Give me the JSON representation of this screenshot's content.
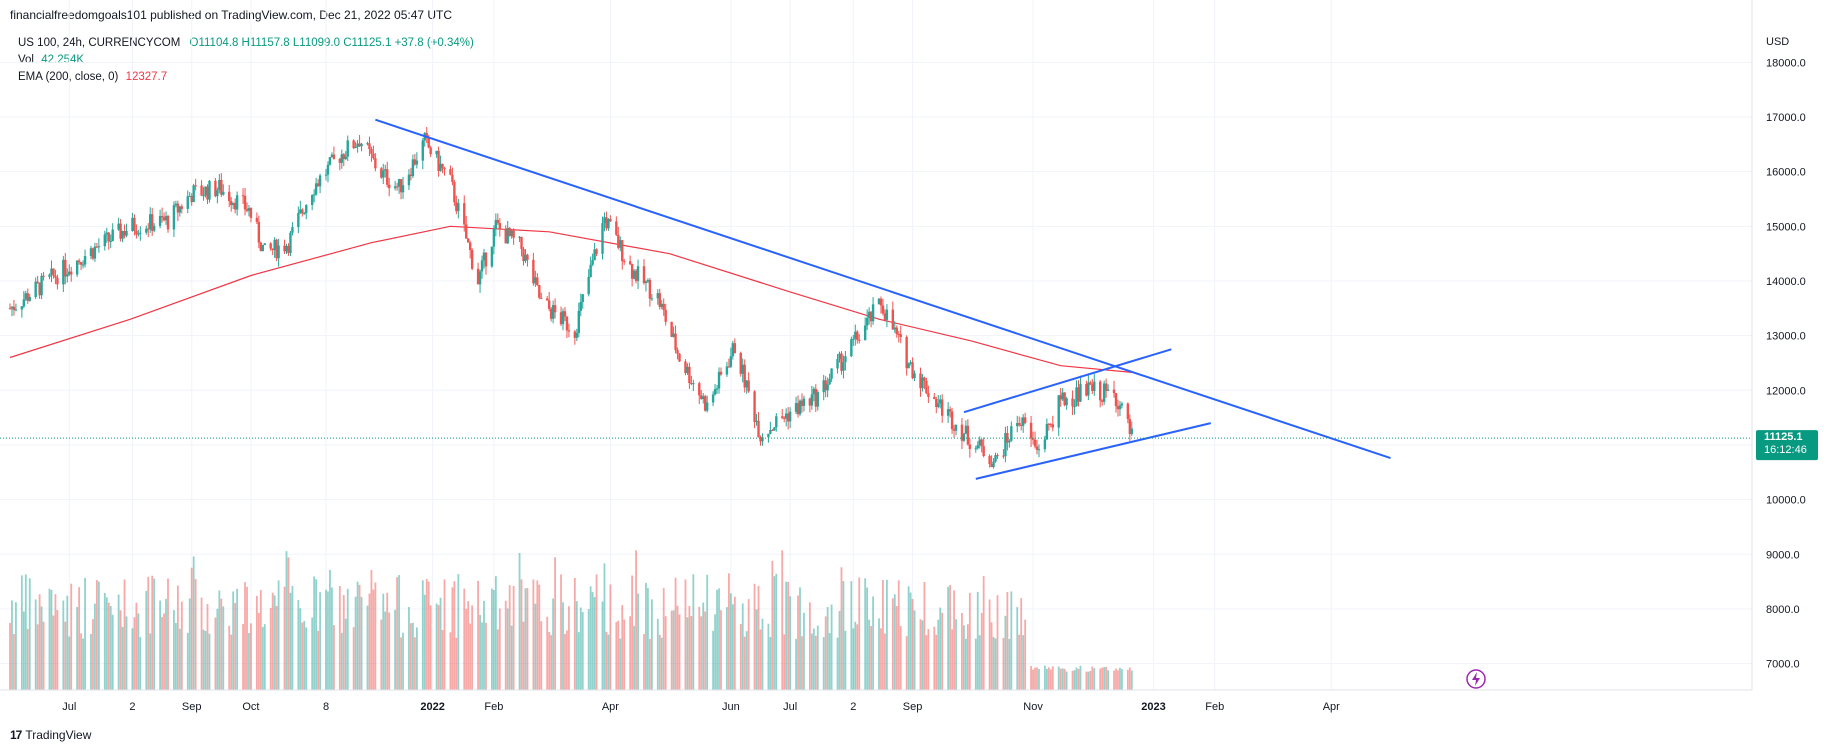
{
  "header": {
    "published_line": "financialfreedomgoals101 published on TradingView.com, Dec 21, 2022 05:47 UTC"
  },
  "legend": {
    "symbol": "US 100, 24h, CURRENCYCOM",
    "ohlc": "O11104.8  H11157.8  L11099.0  C11125.1  +37.8 (+0.34%)",
    "vol_label": "Vol",
    "vol_value": "42.254K",
    "ema_label": "EMA (200, close, 0)",
    "ema_value": "12327.7"
  },
  "footer": {
    "brand": "TradingView",
    "logo": "17"
  },
  "colors": {
    "up": "#26a69a",
    "down": "#ef5350",
    "trend": "#2962ff",
    "ema": "#f23645",
    "price_tag": "#089981"
  },
  "chart_data": {
    "type": "candlestick",
    "currency": "USD",
    "yticks": [
      "18000.0",
      "17000.0",
      "16000.0",
      "15000.0",
      "14000.0",
      "13000.0",
      "12000.0",
      "11000.0",
      "10000.0",
      "9000.0",
      "8000.0",
      "7000.0"
    ],
    "xticks": [
      "Jul",
      "2",
      "Sep",
      "Oct",
      "8",
      "2022",
      "Feb",
      "Apr",
      "Jun",
      "Jul",
      "2",
      "Sep",
      "Nov",
      "2023",
      "Feb",
      "Apr"
    ],
    "last_price": "11125.1",
    "countdown": "16:12:46",
    "price_path": [
      [
        "2021-06-01",
        13500
      ],
      [
        "2021-06-20",
        14000
      ],
      [
        "2021-07-10",
        14500
      ],
      [
        "2021-08-01",
        15000
      ],
      [
        "2021-08-20",
        15100
      ],
      [
        "2021-09-01",
        15600
      ],
      [
        "2021-09-15",
        15700
      ],
      [
        "2021-09-30",
        15300
      ],
      [
        "2021-10-08",
        14500
      ],
      [
        "2021-10-20",
        14700
      ],
      [
        "2021-11-01",
        15700
      ],
      [
        "2021-11-15",
        16300
      ],
      [
        "2021-11-25",
        16600
      ],
      [
        "2021-12-05",
        16000
      ],
      [
        "2021-12-15",
        15700
      ],
      [
        "2021-12-28",
        16550
      ],
      [
        "2022-01-10",
        15800
      ],
      [
        "2022-01-24",
        14000
      ],
      [
        "2022-02-02",
        15000
      ],
      [
        "2022-02-15",
        14600
      ],
      [
        "2022-02-25",
        13600
      ],
      [
        "2022-03-14",
        13100
      ],
      [
        "2022-03-29",
        15150
      ],
      [
        "2022-04-12",
        14200
      ],
      [
        "2022-04-25",
        13700
      ],
      [
        "2022-05-06",
        12600
      ],
      [
        "2022-05-20",
        11700
      ],
      [
        "2022-06-03",
        12800
      ],
      [
        "2022-06-16",
        11200
      ],
      [
        "2022-07-01",
        11600
      ],
      [
        "2022-07-15",
        11900
      ],
      [
        "2022-08-01",
        12800
      ],
      [
        "2022-08-16",
        13600
      ],
      [
        "2022-08-30",
        12500
      ],
      [
        "2022-09-13",
        11800
      ],
      [
        "2022-09-30",
        11100
      ],
      [
        "2022-10-13",
        10700
      ],
      [
        "2022-10-25",
        11500
      ],
      [
        "2022-11-03",
        10900
      ],
      [
        "2022-11-15",
        11800
      ],
      [
        "2022-11-30",
        12000
      ],
      [
        "2022-12-13",
        11900
      ],
      [
        "2022-12-21",
        11125
      ]
    ],
    "ema200_path": [
      [
        "2021-06-01",
        12600
      ],
      [
        "2021-08-01",
        13300
      ],
      [
        "2021-10-01",
        14100
      ],
      [
        "2021-12-01",
        14700
      ],
      [
        "2022-01-10",
        15000
      ],
      [
        "2022-03-01",
        14900
      ],
      [
        "2022-05-01",
        14500
      ],
      [
        "2022-07-01",
        13800
      ],
      [
        "2022-08-15",
        13300
      ],
      [
        "2022-10-01",
        12900
      ],
      [
        "2022-11-15",
        12450
      ],
      [
        "2022-12-21",
        12328
      ]
    ],
    "trendlines": [
      {
        "name": "downtrend",
        "from": [
          "2021-12-03",
          16950
        ],
        "to": [
          "2023-05-01",
          10760
        ]
      },
      {
        "name": "channel-upper",
        "from": [
          "2022-09-27",
          11600
        ],
        "to": [
          "2023-01-10",
          12750
        ]
      },
      {
        "name": "channel-lower",
        "from": [
          "2022-10-03",
          10380
        ],
        "to": [
          "2023-01-30",
          11400
        ]
      }
    ],
    "volume_note": "Bars from Jun 2021 to Oct 2022 range 7400–9400 on axis scale; Nov–Dec 2022 bars near 6900"
  }
}
